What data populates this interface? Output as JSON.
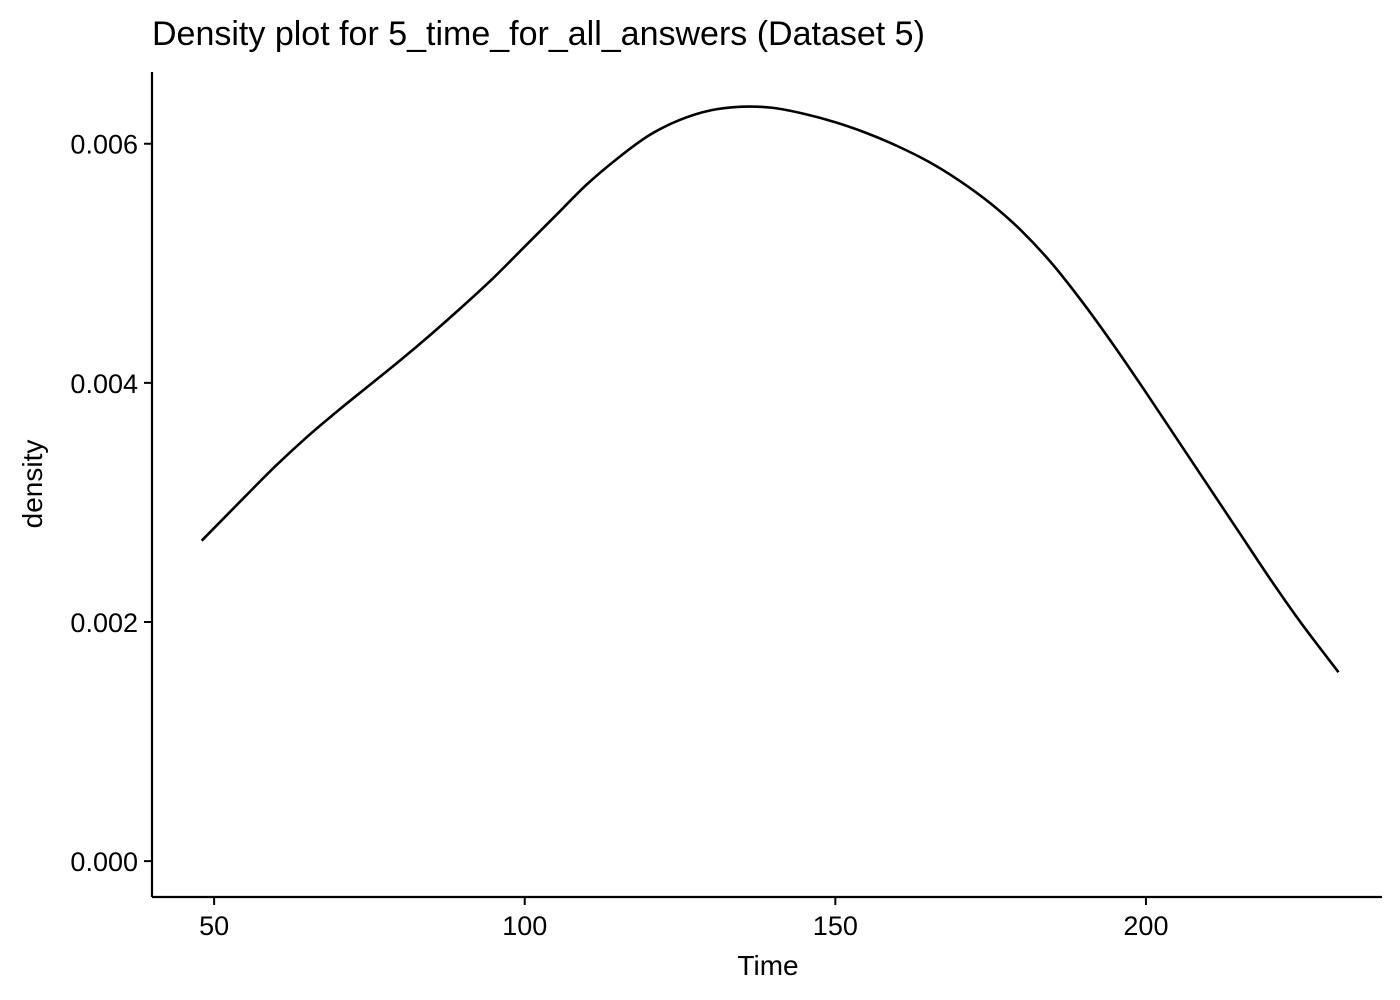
{
  "chart_data": {
    "type": "line",
    "title": "Density plot for 5_time_for_all_answers (Dataset 5)",
    "xlabel": "Time",
    "ylabel": "density",
    "xlim": [
      40,
      238
    ],
    "ylim": [
      -0.0003,
      0.0066
    ],
    "xticks": [
      50,
      100,
      150,
      200
    ],
    "xtick_labels": [
      "50",
      "100",
      "150",
      "200"
    ],
    "yticks": [
      0.0,
      0.002,
      0.004,
      0.006
    ],
    "ytick_labels": [
      "0.000",
      "0.002",
      "0.004",
      "0.006"
    ],
    "grid": false,
    "legend": "none",
    "line_color": "#000000",
    "series": [
      {
        "x": [
          48,
          55,
          60,
          65,
          70,
          75,
          80,
          85,
          90,
          95,
          100,
          105,
          110,
          115,
          120,
          125,
          130,
          135,
          140,
          145,
          150,
          155,
          160,
          165,
          170,
          175,
          180,
          185,
          190,
          195,
          200,
          205,
          210,
          215,
          220,
          225,
          231
        ],
        "y": [
          0.00268,
          0.00305,
          0.00331,
          0.00355,
          0.00377,
          0.00398,
          0.00419,
          0.00441,
          0.00464,
          0.00488,
          0.00514,
          0.0054,
          0.00566,
          0.00588,
          0.00607,
          0.0062,
          0.00628,
          0.00631,
          0.0063,
          0.00625,
          0.00618,
          0.00609,
          0.00598,
          0.00585,
          0.00569,
          0.0055,
          0.00527,
          0.00499,
          0.00466,
          0.0043,
          0.00392,
          0.00353,
          0.00314,
          0.00275,
          0.00236,
          0.00199,
          0.00158
        ]
      }
    ]
  }
}
